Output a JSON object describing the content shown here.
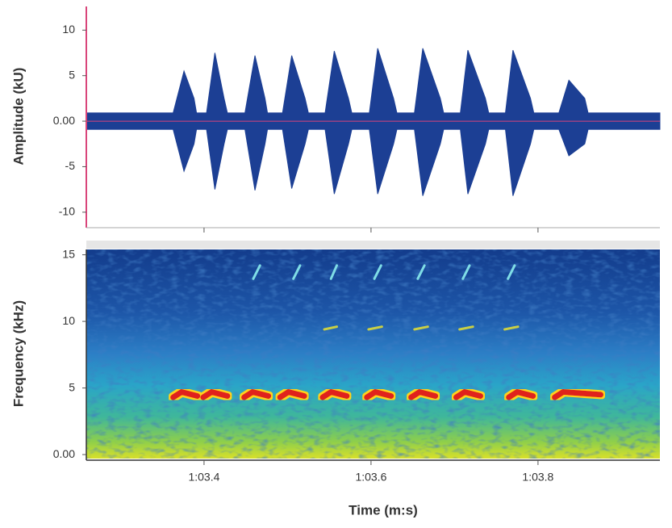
{
  "chart_data": [
    {
      "type": "area",
      "ylabel": "Amplitude (kU)",
      "xlim": [
        63.259,
        63.946
      ],
      "ylim": [
        -11.7,
        12.6
      ],
      "yticks": [
        10,
        5,
        {
          "value": 0,
          "label": "0.00"
        },
        -5,
        -10
      ],
      "zero_line_color": "#d9457a",
      "x": [
        63.259,
        63.363,
        63.376,
        63.388,
        63.391,
        63.403,
        63.413,
        63.424,
        63.428,
        63.449,
        63.461,
        63.473,
        63.476,
        63.494,
        63.505,
        63.521,
        63.525,
        63.545,
        63.556,
        63.573,
        63.577,
        63.598,
        63.608,
        63.627,
        63.631,
        63.652,
        63.662,
        63.683,
        63.687,
        63.707,
        63.716,
        63.737,
        63.741,
        63.761,
        63.77,
        63.791,
        63.795,
        63.825,
        63.837,
        63.856,
        63.86,
        63.946
      ],
      "series": [
        {
          "color": "#1c3f94",
          "values": [
            0.9,
            0.9,
            5.5,
            2.5,
            0.9,
            0.9,
            7.5,
            2.5,
            0.9,
            0.9,
            7.2,
            2.5,
            0.9,
            0.9,
            7.2,
            2.5,
            0.9,
            0.9,
            7.7,
            2.5,
            0.9,
            0.9,
            8,
            2.5,
            0.9,
            0.9,
            8,
            2.5,
            0.9,
            0.9,
            7.8,
            2.5,
            0.9,
            0.9,
            7.8,
            2.5,
            0.9,
            0.9,
            4.5,
            2.5,
            0.9,
            0.9
          ]
        },
        {
          "color": "#1c3f94",
          "values": [
            -0.9,
            -0.9,
            -5.5,
            -2.5,
            -0.9,
            -0.9,
            -7.5,
            -2.5,
            -0.9,
            -0.9,
            -7.6,
            -2.5,
            -0.9,
            -0.9,
            -7.4,
            -2.5,
            -0.9,
            -0.9,
            -8,
            -2.5,
            -0.9,
            -0.9,
            -8,
            -2.5,
            -0.9,
            -0.9,
            -8.2,
            -2.5,
            -0.9,
            -0.9,
            -8,
            -2.5,
            -0.9,
            -0.9,
            -8.2,
            -2.5,
            -0.9,
            -0.9,
            -3.8,
            -2.5,
            -0.9,
            -0.9
          ]
        }
      ]
    },
    {
      "type": "spectrogram",
      "ylabel": "Frequency (kHz)",
      "xlabel": "Time (m:s)",
      "xlim": [
        63.259,
        63.946
      ],
      "ylim": [
        -0.3,
        15.4
      ],
      "yticks": [
        15,
        10,
        5,
        {
          "value": 0,
          "label": "0.00"
        }
      ],
      "xticks": [
        {
          "value": 63.4,
          "label": "1:03.4"
        },
        {
          "value": 63.6,
          "label": "1:03.6"
        },
        {
          "value": 63.8,
          "label": "1:03.8"
        }
      ],
      "series": [
        {
          "color": "#e0201c",
          "x": [
            63.363,
            63.373,
            63.392,
            null,
            63.399,
            63.409,
            63.428,
            null,
            63.448,
            63.458,
            63.477,
            null,
            63.491,
            63.501,
            63.52,
            null,
            63.542,
            63.552,
            63.571,
            null,
            63.595,
            63.605,
            63.624,
            null,
            63.648,
            63.658,
            63.677,
            null,
            63.702,
            63.712,
            63.731,
            null,
            63.765,
            63.775,
            63.794,
            null,
            63.82,
            63.83,
            63.875
          ],
          "values": [
            4.3,
            4.7,
            4.4,
            null,
            4.3,
            4.7,
            4.4,
            null,
            4.3,
            4.7,
            4.4,
            null,
            4.3,
            4.7,
            4.4,
            null,
            4.3,
            4.7,
            4.4,
            null,
            4.3,
            4.7,
            4.4,
            null,
            4.3,
            4.7,
            4.4,
            null,
            4.3,
            4.7,
            4.4,
            null,
            4.3,
            4.7,
            4.4,
            null,
            4.3,
            4.7,
            4.5
          ]
        },
        {
          "color": "#c9cf45",
          "x": [
            63.544,
            63.559,
            null,
            63.597,
            63.613,
            null,
            63.652,
            63.668,
            null,
            63.706,
            63.722,
            null,
            63.76,
            63.776
          ],
          "values": [
            9.4,
            9.6,
            null,
            9.4,
            9.6,
            null,
            9.4,
            9.6,
            null,
            9.4,
            9.6,
            null,
            9.4,
            9.6
          ]
        },
        {
          "color": "#7fdde6",
          "x": [
            63.459,
            63.467,
            null,
            63.507,
            63.515,
            null,
            63.552,
            63.559,
            null,
            63.604,
            63.612,
            null,
            63.656,
            63.664,
            null,
            63.71,
            63.718,
            null,
            63.764,
            63.772
          ],
          "values": [
            13.2,
            14.2,
            null,
            13.2,
            14.2,
            null,
            13.2,
            14.2,
            null,
            13.2,
            14.2,
            null,
            13.2,
            14.2,
            null,
            13.2,
            14.2,
            null,
            13.2,
            14.2
          ]
        }
      ]
    }
  ]
}
